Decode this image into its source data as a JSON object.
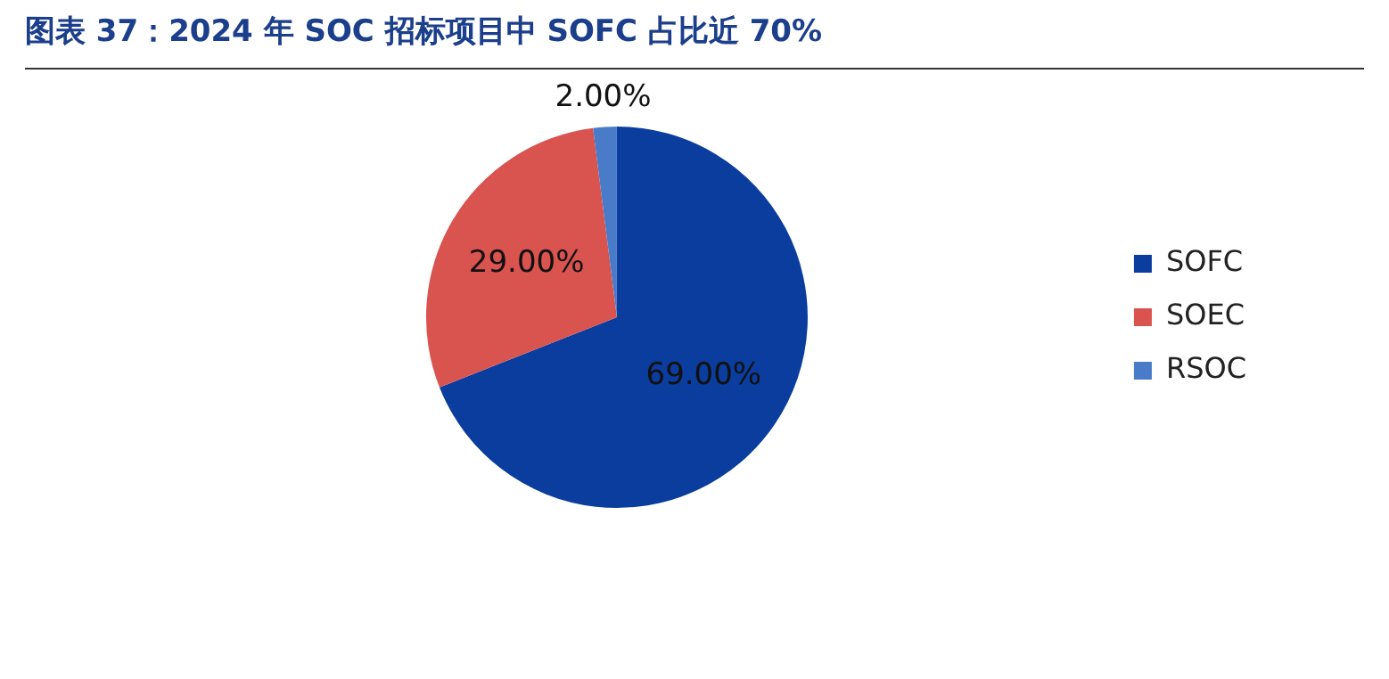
{
  "chart_data": {
    "type": "pie",
    "title": "图表 37：2024 年 SOC 招标项目中 SOFC 占比近 70%",
    "categories": [
      "SOFC",
      "SOEC",
      "RSOC"
    ],
    "values": [
      69,
      29,
      2
    ],
    "colors": [
      "#0b3d9e",
      "#d9534f",
      "#4a7bc8"
    ],
    "value_labels": [
      "69.00%",
      "29.00%",
      "2.00%"
    ],
    "legend": "right"
  }
}
